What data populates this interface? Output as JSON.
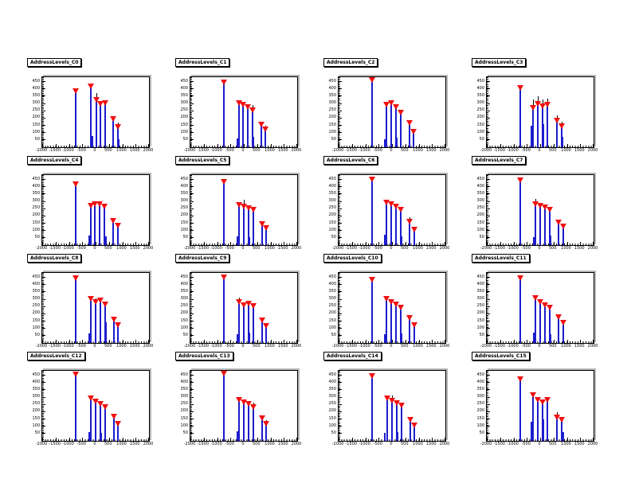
{
  "canvas": {
    "background": "#ffffff",
    "description": "ROOT canvas, 4x4 grid of address-level calibration histograms"
  },
  "colors": {
    "spike": "#1c1ccd",
    "marker": "#f01010",
    "error_bar": "#000000",
    "frame_border": "#000000",
    "frame_shadow": "#b5b5b5",
    "title_bg": "#ffffff",
    "title_border": "#000000",
    "text": "#000000"
  },
  "axes": {
    "xlim": [
      -2000,
      2000
    ],
    "ylim": [
      0,
      480
    ],
    "x_ticks": [
      "-2000",
      "-1500",
      "-1000",
      "-500",
      "0",
      "500",
      "1000",
      "1500",
      "2000"
    ],
    "y_ticks": [
      "50",
      "100",
      "150",
      "200",
      "250",
      "300",
      "350",
      "400",
      "450"
    ],
    "grid": false,
    "legend": false
  },
  "point_format": [
    "x",
    "y",
    "err"
  ],
  "chart_data": [
    {
      "type": "bar",
      "subtype": "spike-histogram",
      "title": "AddressLevels_C0",
      "marker": "inverted-triangle",
      "points": [
        [
          -750,
          384,
          0
        ],
        [
          -180,
          417,
          0
        ],
        [
          20,
          322,
          50
        ],
        [
          180,
          293,
          0
        ],
        [
          360,
          302,
          0
        ],
        [
          660,
          192,
          0
        ],
        [
          840,
          139,
          30
        ]
      ],
      "minor_spikes": [
        [
          -120,
          75
        ],
        [
          880,
          55
        ]
      ]
    },
    {
      "type": "bar",
      "subtype": "spike-histogram",
      "title": "AddressLevels_C1",
      "marker": "inverted-triangle",
      "points": [
        [
          -750,
          440,
          0
        ],
        [
          -180,
          302,
          0
        ],
        [
          -20,
          288,
          0
        ],
        [
          140,
          274,
          0
        ],
        [
          320,
          250,
          40
        ],
        [
          660,
          154,
          0
        ],
        [
          820,
          120,
          25
        ]
      ],
      "minor_spikes": [
        [
          -240,
          60
        ],
        [
          360,
          70
        ]
      ]
    },
    {
      "type": "bar",
      "subtype": "spike-histogram",
      "title": "AddressLevels_C2",
      "marker": "inverted-triangle",
      "points": [
        [
          -750,
          456,
          0
        ],
        [
          -220,
          288,
          0
        ],
        [
          -40,
          302,
          0
        ],
        [
          140,
          274,
          0
        ],
        [
          320,
          235,
          0
        ],
        [
          660,
          163,
          0
        ],
        [
          820,
          106,
          0
        ]
      ],
      "minor_spikes": [
        [
          -280,
          55
        ],
        [
          180,
          65
        ]
      ]
    },
    {
      "type": "bar",
      "subtype": "spike-histogram",
      "title": "AddressLevels_C3",
      "marker": "inverted-triangle",
      "points": [
        [
          -750,
          403,
          20
        ],
        [
          -260,
          269,
          60
        ],
        [
          -80,
          293,
          55
        ],
        [
          80,
          278,
          50
        ],
        [
          280,
          288,
          45
        ],
        [
          620,
          182,
          35
        ],
        [
          800,
          144,
          30
        ]
      ],
      "minor_spikes": [
        [
          -320,
          150
        ],
        [
          120,
          160
        ],
        [
          840,
          70
        ]
      ]
    },
    {
      "type": "bar",
      "subtype": "spike-histogram",
      "title": "AddressLevels_C4",
      "marker": "inverted-triangle",
      "points": [
        [
          -750,
          413,
          0
        ],
        [
          -180,
          269,
          0
        ],
        [
          -20,
          278,
          0
        ],
        [
          160,
          278,
          0
        ],
        [
          340,
          264,
          0
        ],
        [
          660,
          163,
          0
        ],
        [
          840,
          130,
          0
        ]
      ],
      "minor_spikes": [
        [
          -240,
          65
        ],
        [
          380,
          60
        ]
      ]
    },
    {
      "type": "bar",
      "subtype": "spike-histogram",
      "title": "AddressLevels_C5",
      "marker": "inverted-triangle",
      "points": [
        [
          -750,
          432,
          0
        ],
        [
          -180,
          274,
          0
        ],
        [
          0,
          264,
          45
        ],
        [
          180,
          250,
          0
        ],
        [
          360,
          240,
          0
        ],
        [
          680,
          144,
          0
        ],
        [
          840,
          115,
          0
        ]
      ],
      "minor_spikes": [
        [
          -240,
          60
        ],
        [
          220,
          55
        ]
      ]
    },
    {
      "type": "bar",
      "subtype": "spike-histogram",
      "title": "AddressLevels_C6",
      "marker": "inverted-triangle",
      "points": [
        [
          -750,
          446,
          0
        ],
        [
          -220,
          288,
          0
        ],
        [
          -40,
          278,
          0
        ],
        [
          140,
          264,
          0
        ],
        [
          320,
          240,
          0
        ],
        [
          660,
          158,
          35
        ],
        [
          840,
          106,
          0
        ]
      ],
      "minor_spikes": [
        [
          -280,
          70
        ],
        [
          360,
          60
        ]
      ]
    },
    {
      "type": "bar",
      "subtype": "spike-histogram",
      "title": "AddressLevels_C7",
      "marker": "inverted-triangle",
      "points": [
        [
          -750,
          442,
          0
        ],
        [
          -180,
          278,
          40
        ],
        [
          0,
          269,
          0
        ],
        [
          180,
          254,
          0
        ],
        [
          360,
          240,
          0
        ],
        [
          680,
          154,
          0
        ],
        [
          860,
          125,
          0
        ]
      ],
      "minor_spikes": [
        [
          -240,
          55
        ],
        [
          400,
          65
        ]
      ]
    },
    {
      "type": "bar",
      "subtype": "spike-histogram",
      "title": "AddressLevels_C8",
      "marker": "inverted-triangle",
      "points": [
        [
          -750,
          442,
          0
        ],
        [
          -180,
          298,
          0
        ],
        [
          0,
          278,
          25
        ],
        [
          180,
          288,
          0
        ],
        [
          360,
          264,
          0
        ],
        [
          680,
          158,
          0
        ],
        [
          840,
          120,
          0
        ]
      ],
      "minor_spikes": [
        [
          -240,
          65
        ],
        [
          400,
          140
        ]
      ]
    },
    {
      "type": "bar",
      "subtype": "spike-histogram",
      "title": "AddressLevels_C9",
      "marker": "inverted-triangle",
      "points": [
        [
          -750,
          446,
          0
        ],
        [
          -180,
          278,
          35
        ],
        [
          0,
          259,
          0
        ],
        [
          180,
          269,
          0
        ],
        [
          360,
          250,
          0
        ],
        [
          680,
          154,
          0
        ],
        [
          840,
          115,
          0
        ]
      ],
      "minor_spikes": [
        [
          -240,
          60
        ],
        [
          220,
          70
        ]
      ]
    },
    {
      "type": "bar",
      "subtype": "spike-histogram",
      "title": "AddressLevels_C10",
      "marker": "inverted-triangle",
      "points": [
        [
          -750,
          432,
          0
        ],
        [
          -220,
          298,
          0
        ],
        [
          -40,
          278,
          0
        ],
        [
          140,
          264,
          0
        ],
        [
          320,
          240,
          0
        ],
        [
          660,
          168,
          0
        ],
        [
          840,
          120,
          0
        ]
      ],
      "minor_spikes": [
        [
          -280,
          60
        ],
        [
          360,
          65
        ]
      ]
    },
    {
      "type": "bar",
      "subtype": "spike-histogram",
      "title": "AddressLevels_C11",
      "marker": "inverted-triangle",
      "points": [
        [
          -750,
          442,
          0
        ],
        [
          -180,
          307,
          0
        ],
        [
          0,
          278,
          0
        ],
        [
          180,
          259,
          0
        ],
        [
          360,
          240,
          0
        ],
        [
          680,
          173,
          0
        ],
        [
          860,
          134,
          0
        ]
      ],
      "minor_spikes": [
        [
          -240,
          70
        ],
        [
          400,
          60
        ]
      ]
    },
    {
      "type": "bar",
      "subtype": "spike-histogram",
      "title": "AddressLevels_C12",
      "marker": "inverted-triangle",
      "points": [
        [
          -750,
          451,
          0
        ],
        [
          -180,
          288,
          0
        ],
        [
          0,
          269,
          0
        ],
        [
          180,
          250,
          0
        ],
        [
          360,
          230,
          0
        ],
        [
          680,
          163,
          0
        ],
        [
          840,
          115,
          0
        ]
      ],
      "minor_spikes": [
        [
          -240,
          60
        ],
        [
          220,
          55
        ]
      ]
    },
    {
      "type": "bar",
      "subtype": "spike-histogram",
      "title": "AddressLevels_C13",
      "marker": "inverted-triangle",
      "points": [
        [
          -750,
          456,
          0
        ],
        [
          -180,
          278,
          0
        ],
        [
          0,
          264,
          0
        ],
        [
          180,
          250,
          0
        ],
        [
          360,
          230,
          30
        ],
        [
          680,
          154,
          0
        ],
        [
          840,
          115,
          25
        ]
      ],
      "minor_spikes": [
        [
          -240,
          65
        ],
        [
          360,
          60
        ]
      ]
    },
    {
      "type": "bar",
      "subtype": "spike-histogram",
      "title": "AddressLevels_C14",
      "marker": "inverted-triangle",
      "points": [
        [
          -750,
          442,
          0
        ],
        [
          -180,
          288,
          0
        ],
        [
          0,
          274,
          35
        ],
        [
          180,
          259,
          0
        ],
        [
          360,
          240,
          0
        ],
        [
          680,
          144,
          0
        ],
        [
          840,
          106,
          0
        ]
      ],
      "minor_spikes": [
        [
          -280,
          55
        ],
        [
          220,
          60
        ]
      ]
    },
    {
      "type": "bar",
      "subtype": "spike-histogram",
      "title": "AddressLevels_C15",
      "marker": "inverted-triangle",
      "points": [
        [
          -750,
          422,
          0
        ],
        [
          -260,
          312,
          0
        ],
        [
          -80,
          278,
          0
        ],
        [
          80,
          264,
          0
        ],
        [
          280,
          278,
          0
        ],
        [
          640,
          158,
          40
        ],
        [
          820,
          144,
          0
        ]
      ],
      "minor_spikes": [
        [
          -320,
          130
        ],
        [
          120,
          150
        ],
        [
          860,
          60
        ]
      ]
    }
  ]
}
